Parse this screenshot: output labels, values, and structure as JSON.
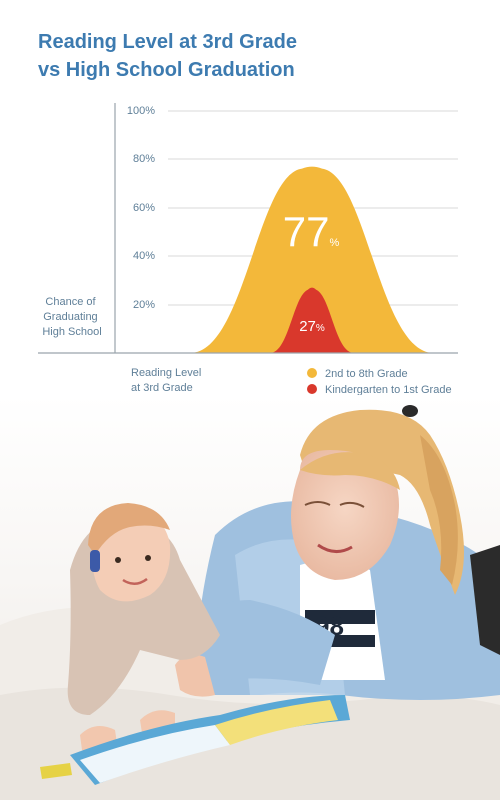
{
  "title": {
    "line1": "Reading Level at 3rd Grade",
    "line2": "vs High School Graduation"
  },
  "chart_data": {
    "type": "area",
    "ylabel_lines": [
      "Chance of",
      "Graduating",
      "High School"
    ],
    "xlabel_lines": [
      "Reading Level",
      "at 3rd Grade"
    ],
    "ylim": [
      0,
      100
    ],
    "yticks": [
      "100%",
      "80%",
      "60%",
      "40%",
      "20%"
    ],
    "ytick_values": [
      100,
      80,
      60,
      40,
      20
    ],
    "grid": true,
    "legend_position": "bottom-right",
    "series": [
      {
        "name": "2nd to 8th Grade",
        "value": 77,
        "value_main": "77",
        "unit": "%",
        "color": "#f3b83a"
      },
      {
        "name": "Kindergarten to 1st Grade",
        "value": 27,
        "value_main": "27",
        "unit": "%",
        "color": "#d9382c"
      }
    ]
  },
  "photo": {
    "description_icon": "mother-and-baby-reading-photo"
  }
}
